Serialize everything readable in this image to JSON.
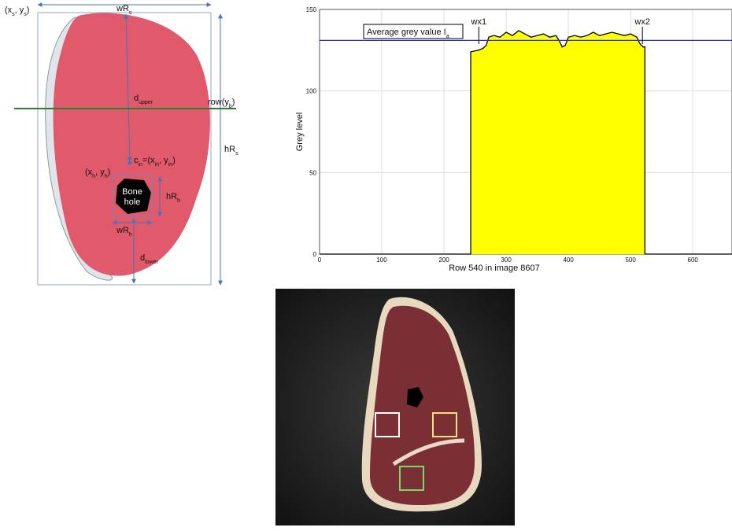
{
  "diagram": {
    "labels": [
      {
        "parts": [
          "(x",
          "s",
          ", y",
          "s",
          ")"
        ]
      },
      {
        "parts": [
          "wR",
          "s"
        ]
      },
      {
        "parts": [
          "d",
          "upper"
        ]
      },
      {
        "parts": [
          "row(y",
          "b",
          ")"
        ]
      },
      {
        "parts": [
          "hR",
          "s"
        ]
      },
      {
        "parts": [
          "c",
          "in",
          "=(x",
          "in",
          ", y",
          "in",
          ")"
        ]
      },
      {
        "parts": [
          "(x",
          "h",
          ", y",
          "h",
          ")"
        ]
      },
      {
        "parts": [
          "hR",
          "h"
        ]
      },
      {
        "parts": [
          "wR",
          "h"
        ]
      },
      {
        "parts": [
          "d",
          "lower"
        ]
      }
    ],
    "bone_hole": [
      "Bone",
      "hole"
    ]
  },
  "chart_data": {
    "type": "area",
    "x_label": "Row 540 in image 8607",
    "y_label": "Grey level",
    "x": [
      0,
      243,
      243,
      255,
      262,
      268,
      272,
      280,
      290,
      300,
      310,
      320,
      330,
      340,
      350,
      360,
      370,
      380,
      385,
      390,
      395,
      400,
      410,
      420,
      430,
      440,
      450,
      460,
      470,
      480,
      490,
      500,
      510,
      515,
      520,
      523,
      523,
      663
    ],
    "values": [
      0,
      0,
      124,
      125,
      126,
      128,
      133,
      134,
      133,
      136,
      134,
      137,
      135,
      133,
      134,
      135,
      133,
      134,
      131,
      127,
      128,
      133,
      134,
      133,
      134,
      136,
      134,
      135,
      136,
      135,
      134,
      135,
      133,
      129,
      127,
      127,
      0,
      0
    ],
    "color": "#ffff00",
    "xlim": [
      0,
      663
    ],
    "ylim": [
      0,
      150
    ],
    "xticks": [
      0,
      100,
      200,
      300,
      400,
      500,
      600
    ],
    "yticks": [
      0,
      50,
      100,
      150
    ],
    "grid": true,
    "average": {
      "value": 131,
      "color": "#2a2adf",
      "label": [
        "Average grey value I",
        "a"
      ]
    },
    "annotations": [
      {
        "text": "wx1",
        "x": 256
      },
      {
        "text": "wx2",
        "x": 519
      }
    ]
  }
}
